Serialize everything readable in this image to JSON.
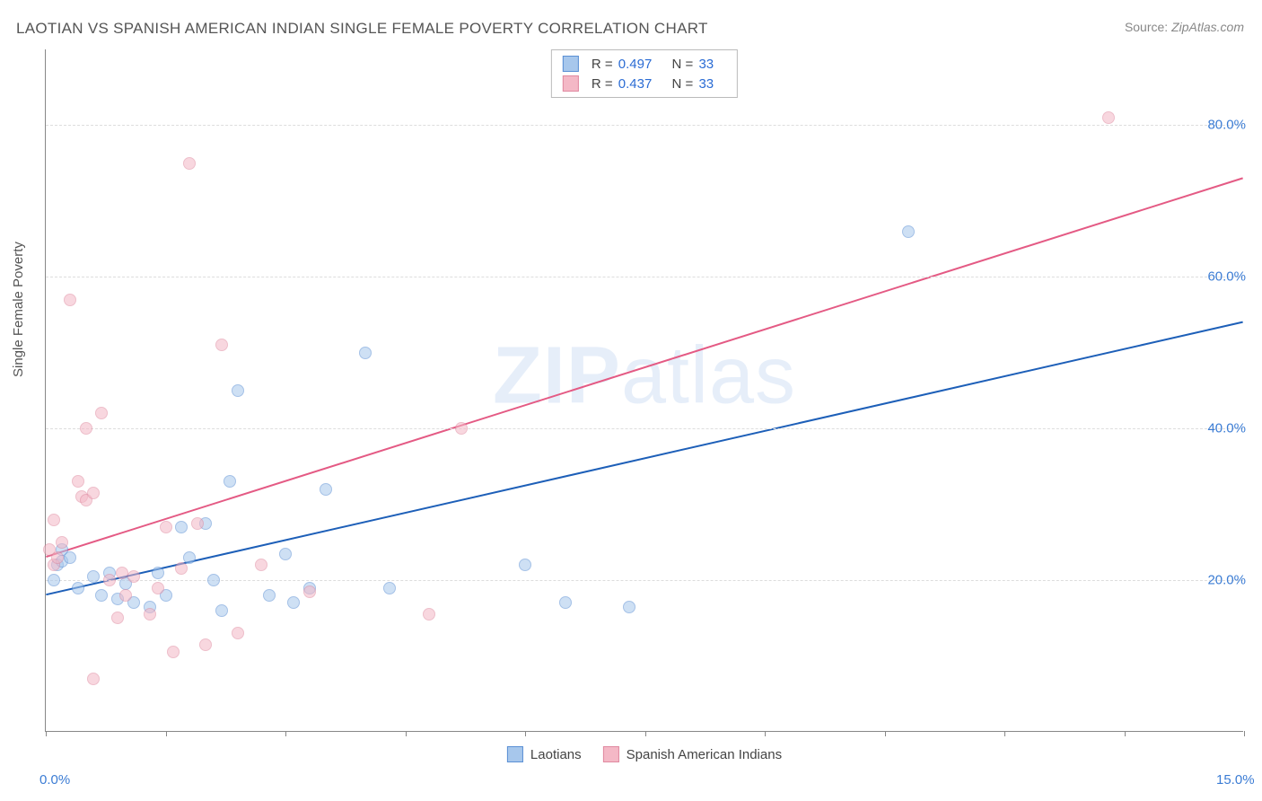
{
  "title": "LAOTIAN VS SPANISH AMERICAN INDIAN SINGLE FEMALE POVERTY CORRELATION CHART",
  "source_prefix": "Source: ",
  "source_name": "ZipAtlas.com",
  "y_axis_label": "Single Female Poverty",
  "watermark_a": "ZIP",
  "watermark_b": "atlas",
  "chart": {
    "type": "scatter",
    "background_color": "#ffffff",
    "grid_color": "#dddddd",
    "axis_color": "#888888",
    "xlim": [
      0,
      15
    ],
    "ylim": [
      0,
      90
    ],
    "x_ticks": [
      0,
      1.5,
      3,
      4.5,
      6,
      7.5,
      9,
      10.5,
      12,
      13.5,
      15
    ],
    "x_tick_labels": {
      "0": "0.0%",
      "15": "15.0%"
    },
    "y_gridlines": [
      20,
      40,
      60,
      80
    ],
    "y_tick_labels": {
      "20": "20.0%",
      "40": "40.0%",
      "60": "60.0%",
      "80": "80.0%"
    },
    "tick_label_color": "#3b7cd4",
    "marker_radius": 7,
    "marker_opacity": 0.55,
    "series": [
      {
        "name": "Laotians",
        "fill_color": "#a7c7ec",
        "stroke_color": "#5a8fd4",
        "line_color": "#1d5fb8",
        "line_width": 2,
        "R": "0.497",
        "N": "33",
        "trend_line": {
          "x1": 0,
          "y1": 18,
          "x2": 15,
          "y2": 54
        },
        "points": [
          [
            0.1,
            20
          ],
          [
            0.15,
            22
          ],
          [
            0.2,
            24
          ],
          [
            0.2,
            22.5
          ],
          [
            0.3,
            23
          ],
          [
            0.4,
            19
          ],
          [
            0.6,
            20.5
          ],
          [
            0.7,
            18
          ],
          [
            0.8,
            21
          ],
          [
            0.9,
            17.5
          ],
          [
            1.0,
            19.5
          ],
          [
            1.1,
            17
          ],
          [
            1.3,
            16.5
          ],
          [
            1.4,
            21
          ],
          [
            1.5,
            18
          ],
          [
            1.7,
            27
          ],
          [
            1.8,
            23
          ],
          [
            2.0,
            27.5
          ],
          [
            2.1,
            20
          ],
          [
            2.2,
            16
          ],
          [
            2.3,
            33
          ],
          [
            2.4,
            45
          ],
          [
            2.8,
            18
          ],
          [
            3.0,
            23.5
          ],
          [
            3.1,
            17
          ],
          [
            3.3,
            19
          ],
          [
            3.5,
            32
          ],
          [
            4.0,
            50
          ],
          [
            4.3,
            19
          ],
          [
            6.0,
            22
          ],
          [
            6.5,
            17
          ],
          [
            7.3,
            16.5
          ],
          [
            10.8,
            66
          ]
        ]
      },
      {
        "name": "Spanish American Indians",
        "fill_color": "#f4b8c6",
        "stroke_color": "#e089a0",
        "line_color": "#e45a84",
        "line_width": 2,
        "R": "0.437",
        "N": "33",
        "trend_line": {
          "x1": 0,
          "y1": 23,
          "x2": 15,
          "y2": 73
        },
        "points": [
          [
            0.05,
            24
          ],
          [
            0.1,
            28
          ],
          [
            0.1,
            22
          ],
          [
            0.15,
            23
          ],
          [
            0.2,
            25
          ],
          [
            0.3,
            57
          ],
          [
            0.4,
            33
          ],
          [
            0.45,
            31
          ],
          [
            0.5,
            40
          ],
          [
            0.5,
            30.5
          ],
          [
            0.6,
            31.5
          ],
          [
            0.7,
            42
          ],
          [
            0.8,
            20
          ],
          [
            0.9,
            15
          ],
          [
            0.95,
            21
          ],
          [
            1.0,
            18
          ],
          [
            1.1,
            20.5
          ],
          [
            1.3,
            15.5
          ],
          [
            1.4,
            19
          ],
          [
            1.5,
            27
          ],
          [
            1.6,
            10.5
          ],
          [
            1.7,
            21.5
          ],
          [
            1.8,
            75
          ],
          [
            1.9,
            27.5
          ],
          [
            2.0,
            11.5
          ],
          [
            2.2,
            51
          ],
          [
            2.4,
            13
          ],
          [
            2.7,
            22
          ],
          [
            3.3,
            18.5
          ],
          [
            4.8,
            15.5
          ],
          [
            5.2,
            40
          ],
          [
            0.6,
            7
          ],
          [
            13.3,
            81
          ]
        ]
      }
    ]
  },
  "legend_bottom": [
    {
      "label": "Laotians",
      "fill": "#a7c7ec",
      "stroke": "#5a8fd4"
    },
    {
      "label": "Spanish American Indians",
      "fill": "#f4b8c6",
      "stroke": "#e089a0"
    }
  ]
}
